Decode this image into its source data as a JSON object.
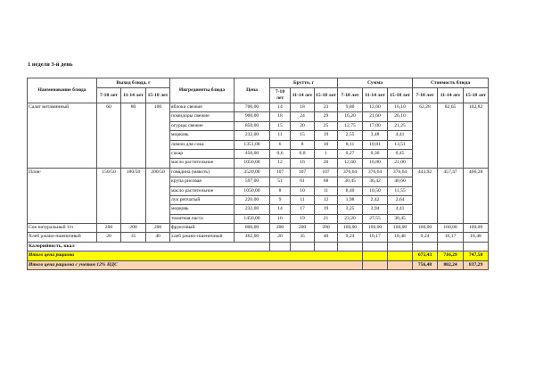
{
  "title": "1 неделя 3-й день",
  "headers": {
    "dish_name": "Наименование блюда",
    "yield": "Выход блюда, г",
    "ingredients": "Ингредиенты блюда",
    "price": "Цена",
    "brutto": "Брутто, г",
    "sum": "Сумма",
    "cost": "Стоимость блюда",
    "ages": [
      "7-10 лет",
      "11-14 лет",
      "15-18 лет"
    ]
  },
  "dishes": [
    {
      "name": "Салат витаминный",
      "yield": [
        "60",
        "80",
        "100"
      ],
      "cost": [
        "62,28",
        "82,65",
        "102,82"
      ],
      "ingredients": [
        {
          "name": "яблоки свежие",
          "price": "700,00",
          "brutto": [
            "14",
            "18",
            "23"
          ],
          "sum": [
            "9,80",
            "12,60",
            "16,10"
          ]
        },
        {
          "name": "помидоры свежие",
          "price": "900,00",
          "brutto": [
            "18",
            "24",
            "29"
          ],
          "sum": [
            "16,20",
            "21,60",
            "26,10"
          ]
        },
        {
          "name": "огурцы свежие",
          "price": "850,00",
          "brutto": [
            "15",
            "20",
            "25"
          ],
          "sum": [
            "12,75",
            "17,00",
            "21,25"
          ]
        },
        {
          "name": "морковь",
          "price": "232,00",
          "brutto": [
            "11",
            "15",
            "19"
          ],
          "sum": [
            "2,55",
            "3,48",
            "4,41"
          ]
        },
        {
          "name": "лимон для сока",
          "price": "1351,00",
          "brutto": [
            "6",
            "8",
            "10"
          ],
          "sum": [
            "8,11",
            "10,81",
            "13,51"
          ]
        },
        {
          "name": "сахар",
          "price": "450,00",
          "brutto": [
            "0,6",
            "0,8",
            "1"
          ],
          "sum": [
            "0,27",
            "0,36",
            "0,45"
          ]
        },
        {
          "name": "масло растительное",
          "price": "1050,00",
          "brutto": [
            "12",
            "16",
            "20"
          ],
          "sum": [
            "12,60",
            "16,80",
            "21,00"
          ]
        }
      ]
    },
    {
      "name": "Плов-",
      "yield": [
        "150/50",
        "180/50",
        "200/50"
      ],
      "cost": [
        "443,92",
        "457,47",
        "466,28"
      ],
      "ingredients": [
        {
          "name": "говядина (мякоть)",
          "price": "3520,00",
          "brutto": [
            "107",
            "107",
            "107"
          ],
          "sum": [
            "376,64",
            "376,64",
            "376,64"
          ]
        },
        {
          "name": "крупа рисовая",
          "price": "597,00",
          "brutto": [
            "51",
            "61",
            "68"
          ],
          "sum": [
            "30,45",
            "36,42",
            "40,60"
          ]
        },
        {
          "name": "масло растительное",
          "price": "1050,00",
          "brutto": [
            "8",
            "10",
            "11"
          ],
          "sum": [
            "8,40",
            "10,50",
            "11,55"
          ]
        },
        {
          "name": "лук репчатый",
          "price": "220,00",
          "brutto": [
            "9",
            "11",
            "12"
          ],
          "sum": [
            "1,98",
            "2,42",
            "2,64"
          ]
        },
        {
          "name": "морковь",
          "price": "232,00",
          "brutto": [
            "14",
            "17",
            "19"
          ],
          "sum": [
            "3,25",
            "3,94",
            "4,41"
          ]
        },
        {
          "name": "томатная паста",
          "price": "1450,00",
          "brutto": [
            "16",
            "19",
            "21"
          ],
          "sum": [
            "23,20",
            "27,55",
            "30,45"
          ]
        }
      ]
    },
    {
      "name": "Сок натуральный т/п",
      "yield": [
        "200",
        "200",
        "200"
      ],
      "cost": [
        "160,00",
        "160,00",
        "160,00"
      ],
      "ingredients": [
        {
          "name": "фруктовый",
          "price": "800,00",
          "brutto": [
            "200",
            "200",
            "200"
          ],
          "sum": [
            "160,00",
            "160,00",
            "160,00"
          ]
        }
      ]
    },
    {
      "name": "Хлеб ржано-пшеничный",
      "yield": [
        "20",
        "35",
        "40"
      ],
      "cost": [
        "9,24",
        "16,17",
        "18,48"
      ],
      "ingredients": [
        {
          "name": "хлеб ржано-пшеничный",
          "price": "462,00",
          "brutto": [
            "20",
            "35",
            "40"
          ],
          "sum": [
            "9,24",
            "16,17",
            "18,48"
          ]
        }
      ]
    }
  ],
  "calories_label": "Калорийность, ккал",
  "total": {
    "label": "Итого цена рациона",
    "values": [
      "675,43",
      "716,29",
      "747,58"
    ],
    "color": "#ffff00"
  },
  "total_vat": {
    "label": "Итого цена рациона с учетом 12% НДС",
    "values": [
      "756,48",
      "802,24",
      "837,29"
    ],
    "color": "#fcd5b4"
  }
}
